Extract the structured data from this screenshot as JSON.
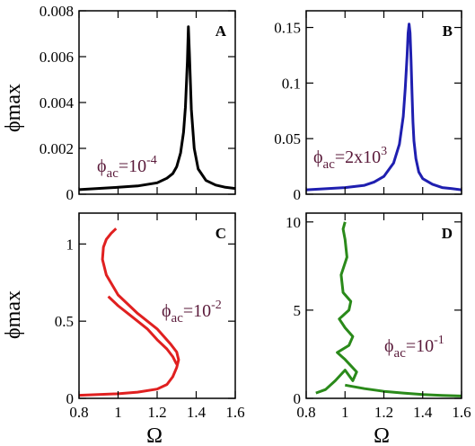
{
  "figure": {
    "ylabel_top": "ϕmax",
    "ylabel_bottom": "ϕmax",
    "xlabel_left": "Ω",
    "xlabel_right": "Ω"
  },
  "chart_data": [
    {
      "panel": "A",
      "type": "line",
      "xlim": [
        0.8,
        1.6
      ],
      "ylim": [
        0,
        0.008
      ],
      "yticks": [
        "0",
        "0.002",
        "0.004",
        "0.006",
        "0.008"
      ],
      "xticks": [],
      "annotation": {
        "base": "ϕ",
        "sub": "ac",
        "text": "=10",
        "sup": "-4"
      },
      "color": "#000000",
      "series": [
        {
          "x": [
            0.8,
            1.0,
            1.1,
            1.2,
            1.25,
            1.28,
            1.3,
            1.32,
            1.335,
            1.345,
            1.355,
            1.36,
            1.365,
            1.375,
            1.39,
            1.41,
            1.45,
            1.5,
            1.55,
            1.6
          ],
          "y": [
            0.0002,
            0.0003,
            0.00036,
            0.0005,
            0.0007,
            0.0009,
            0.0012,
            0.0018,
            0.0027,
            0.0038,
            0.0058,
            0.0073,
            0.0062,
            0.0037,
            0.002,
            0.0011,
            0.0006,
            0.0004,
            0.0003,
            0.00025
          ]
        }
      ]
    },
    {
      "panel": "B",
      "type": "line",
      "xlim": [
        0.8,
        1.6
      ],
      "ylim": [
        0,
        0.165
      ],
      "yticks": [
        "0",
        "0.05",
        "0.1",
        "0.15"
      ],
      "xticks": [],
      "annotation": {
        "base": "ϕ",
        "sub": "ac",
        "text": "=2x10",
        "sup": "3"
      },
      "color": "#1f1fb0",
      "series": [
        {
          "x": [
            0.8,
            1.0,
            1.1,
            1.15,
            1.2,
            1.25,
            1.28,
            1.3,
            1.31,
            1.32,
            1.325,
            1.33,
            1.335,
            1.34,
            1.345,
            1.35,
            1.355,
            1.365,
            1.38,
            1.4,
            1.45,
            1.5,
            1.55,
            1.6
          ],
          "y": [
            0.004,
            0.006,
            0.008,
            0.011,
            0.016,
            0.028,
            0.045,
            0.07,
            0.095,
            0.125,
            0.145,
            0.153,
            0.145,
            0.12,
            0.09,
            0.065,
            0.048,
            0.032,
            0.02,
            0.014,
            0.009,
            0.006,
            0.005,
            0.004
          ]
        }
      ]
    },
    {
      "panel": "C",
      "type": "line",
      "xlim": [
        0.8,
        1.6
      ],
      "ylim": [
        0,
        1.2
      ],
      "yticks": [
        "0",
        "0.5",
        "1"
      ],
      "xticks": [
        "0.8",
        "1",
        "1.2",
        "1.4",
        "1.6"
      ],
      "annotation": {
        "base": "ϕ",
        "sub": "ac",
        "text": "=10",
        "sup": "-2"
      },
      "color": "#e02020",
      "series": [
        {
          "x": [
            0.8,
            1.0,
            1.1,
            1.2,
            1.25,
            1.28,
            1.3,
            1.31,
            1.3,
            1.27,
            1.2,
            1.1,
            1.0,
            0.94,
            0.92,
            0.925,
            0.94,
            0.965,
            0.99
          ],
          "y": [
            0.02,
            0.03,
            0.04,
            0.06,
            0.09,
            0.14,
            0.2,
            0.25,
            0.3,
            0.35,
            0.45,
            0.55,
            0.67,
            0.8,
            0.9,
            0.98,
            1.03,
            1.07,
            1.1
          ]
        },
        {
          "x": [
            0.95,
            1.0,
            1.05,
            1.1,
            1.15,
            1.2,
            1.25,
            1.28,
            1.3
          ],
          "y": [
            0.66,
            0.6,
            0.55,
            0.5,
            0.45,
            0.38,
            0.32,
            0.27,
            0.22
          ]
        }
      ]
    },
    {
      "panel": "D",
      "type": "line",
      "xlim": [
        0.8,
        1.6
      ],
      "ylim": [
        0,
        10.5
      ],
      "yticks": [
        "0",
        "5",
        "10"
      ],
      "xticks": [
        "0.8",
        "1",
        "1.2",
        "1.4",
        "1.6"
      ],
      "annotation": {
        "base": "ϕ",
        "sub": "ac",
        "text": "=10",
        "sup": "-1"
      },
      "color": "#2a8a1a",
      "series": [
        {
          "x": [
            0.85,
            0.9,
            0.95,
            1.0,
            1.02,
            1.04,
            1.06,
            1.0,
            0.96,
            1.02,
            1.04,
            1.0,
            0.97,
            1.02,
            1.03,
            0.99,
            0.98,
            1.01,
            1.0,
            0.99,
            1.0
          ],
          "y": [
            0.3,
            0.5,
            1.0,
            1.6,
            1.3,
            1.0,
            1.5,
            2.2,
            2.6,
            3.0,
            3.5,
            4.0,
            4.5,
            5.0,
            5.5,
            6.0,
            7.0,
            8.0,
            9.0,
            9.6,
            10.0
          ]
        },
        {
          "x": [
            1.0,
            1.1,
            1.2,
            1.3,
            1.4,
            1.5,
            1.6
          ],
          "y": [
            0.75,
            0.55,
            0.4,
            0.3,
            0.22,
            0.17,
            0.13
          ]
        }
      ]
    }
  ]
}
